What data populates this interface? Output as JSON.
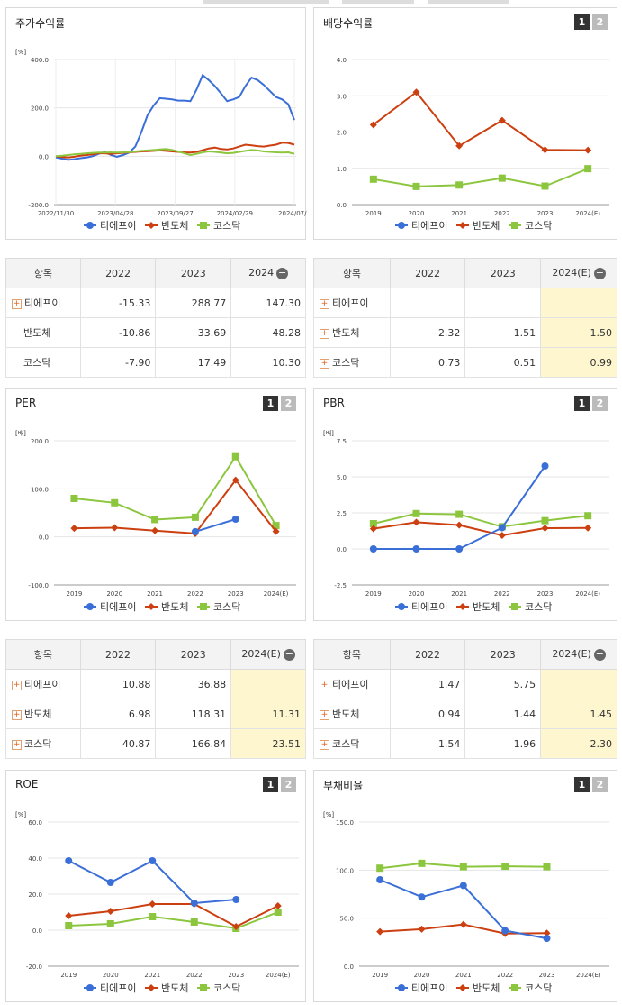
{
  "colors": {
    "tiepi": "#3a6fd8",
    "semi": "#cc3f10",
    "kosdaq": "#8cc63f"
  },
  "legend": [
    "티에프이",
    "반도체",
    "코스닥"
  ],
  "tab_labels": [
    "1",
    "2"
  ],
  "charts": {
    "stock": {
      "title": "주가수익률",
      "unit": "[%]",
      "ylim": [
        -200,
        400
      ],
      "yticks": [
        "400.0",
        "200.0",
        "0.0",
        "-200.0"
      ],
      "xticks": [
        "2022/11/30",
        "2023/04/28",
        "2023/09/27",
        "2024/02/29",
        "2024/07/3"
      ],
      "grid": true
    },
    "dividend": {
      "title": "배당수익률",
      "unit": "",
      "ylim": [
        0,
        4
      ],
      "yticks": [
        "4.0",
        "3.0",
        "2.0",
        "1.0",
        "0.0"
      ],
      "categories": [
        "2019",
        "2020",
        "2021",
        "2022",
        "2023",
        "2024(E)"
      ]
    },
    "per": {
      "title": "PER",
      "unit": "[배]",
      "ylim": [
        -100,
        200
      ],
      "yticks": [
        "200.0",
        "100.0",
        "0.0",
        "-100.0"
      ],
      "categories": [
        "2019",
        "2020",
        "2021",
        "2022",
        "2023",
        "2024(E)"
      ]
    },
    "pbr": {
      "title": "PBR",
      "unit": "[배]",
      "ylim": [
        -2.5,
        7.5
      ],
      "yticks": [
        "7.5",
        "5.0",
        "2.5",
        "0.0",
        "-2.5"
      ],
      "categories": [
        "2019",
        "2020",
        "2021",
        "2022",
        "2023",
        "2024(E)"
      ]
    },
    "roe": {
      "title": "ROE",
      "unit": "[%]",
      "ylim": [
        -20,
        60
      ],
      "yticks": [
        "60.0",
        "40.0",
        "20.0",
        "0.0",
        "-20.0"
      ],
      "categories": [
        "2019",
        "2020",
        "2021",
        "2022",
        "2023",
        "2024(E)"
      ]
    },
    "debt": {
      "title": "부채비율",
      "unit": "[%]",
      "ylim": [
        0,
        150
      ],
      "yticks": [
        "150.0",
        "100.0",
        "50.0",
        "0.0"
      ],
      "categories": [
        "2019",
        "2020",
        "2021",
        "2022",
        "2023",
        "2024(E)"
      ]
    }
  },
  "chart_data": [
    {
      "type": "line",
      "title": "주가수익률",
      "ylabel": "[%]",
      "ylim": [
        -200,
        400
      ],
      "x": [
        "2022/11/30",
        "",
        "",
        "",
        "",
        "",
        "",
        "",
        "",
        "",
        "2023/04/28",
        "",
        "",
        "",
        "",
        "",
        "",
        "",
        "",
        "",
        "2023/09/27",
        "",
        "",
        "",
        "",
        "",
        "",
        "",
        "",
        "",
        "2024/02/29",
        "",
        "",
        "",
        "",
        "",
        "",
        "",
        "",
        "2024/07/3"
      ],
      "series": [
        {
          "name": "티에프이",
          "values": [
            -5,
            -10,
            -15,
            -12,
            -8,
            -5,
            0,
            10,
            18,
            5,
            -2,
            5,
            15,
            40,
            100,
            170,
            210,
            240,
            238,
            235,
            230,
            230,
            228,
            275,
            335,
            315,
            290,
            260,
            228,
            235,
            245,
            290,
            325,
            315,
            295,
            270,
            245,
            235,
            215,
            150
          ]
        },
        {
          "name": "반도체",
          "values": [
            0,
            -3,
            -5,
            -2,
            2,
            5,
            8,
            12,
            12,
            10,
            12,
            14,
            16,
            18,
            20,
            21,
            22,
            24,
            22,
            20,
            18,
            16,
            15,
            18,
            25,
            32,
            36,
            30,
            28,
            32,
            40,
            48,
            45,
            42,
            40,
            44,
            48,
            56,
            55,
            48
          ]
        },
        {
          "name": "코스닥",
          "values": [
            0,
            2,
            5,
            8,
            10,
            12,
            14,
            15,
            15,
            16,
            15,
            16,
            17,
            20,
            22,
            24,
            26,
            28,
            30,
            26,
            20,
            12,
            5,
            10,
            16,
            20,
            18,
            15,
            12,
            14,
            18,
            22,
            26,
            24,
            20,
            18,
            16,
            15,
            16,
            10
          ]
        }
      ]
    },
    {
      "type": "line",
      "title": "배당수익률",
      "ylim": [
        0,
        4
      ],
      "categories": [
        "2019",
        "2020",
        "2021",
        "2022",
        "2023",
        "2024(E)"
      ],
      "series": [
        {
          "name": "티에프이",
          "values": [
            null,
            null,
            null,
            null,
            null,
            null
          ]
        },
        {
          "name": "반도체",
          "values": [
            2.2,
            3.1,
            1.62,
            2.32,
            1.51,
            1.5
          ]
        },
        {
          "name": "코스닥",
          "values": [
            0.7,
            0.5,
            0.54,
            0.73,
            0.51,
            0.99
          ]
        }
      ]
    },
    {
      "type": "line",
      "title": "PER",
      "ylabel": "[배]",
      "ylim": [
        -100,
        200
      ],
      "categories": [
        "2019",
        "2020",
        "2021",
        "2022",
        "2023",
        "2024(E)"
      ],
      "series": [
        {
          "name": "티에프이",
          "values": [
            null,
            null,
            null,
            10.88,
            36.88,
            null
          ]
        },
        {
          "name": "반도체",
          "values": [
            18,
            19,
            13,
            6.98,
            118.31,
            11.31
          ]
        },
        {
          "name": "코스닥",
          "values": [
            80,
            71,
            36,
            40.87,
            166.84,
            23.51
          ]
        }
      ]
    },
    {
      "type": "line",
      "title": "PBR",
      "ylabel": "[배]",
      "ylim": [
        -2.5,
        7.5
      ],
      "categories": [
        "2019",
        "2020",
        "2021",
        "2022",
        "2023",
        "2024(E)"
      ],
      "series": [
        {
          "name": "티에프이",
          "values": [
            0,
            0,
            0,
            1.47,
            5.75,
            null
          ]
        },
        {
          "name": "반도체",
          "values": [
            1.4,
            1.85,
            1.65,
            0.94,
            1.44,
            1.45
          ]
        },
        {
          "name": "코스닥",
          "values": [
            1.75,
            2.45,
            2.4,
            1.54,
            1.96,
            2.3
          ]
        }
      ]
    },
    {
      "type": "line",
      "title": "ROE",
      "ylabel": "[%]",
      "ylim": [
        -20,
        60
      ],
      "categories": [
        "2019",
        "2020",
        "2021",
        "2022",
        "2023",
        "2024(E)"
      ],
      "series": [
        {
          "name": "티에프이",
          "values": [
            38.5,
            26.5,
            38.5,
            15,
            17,
            null
          ]
        },
        {
          "name": "반도체",
          "values": [
            8,
            10.5,
            14.5,
            14.5,
            2,
            13.5
          ]
        },
        {
          "name": "코스닥",
          "values": [
            2.5,
            3.5,
            7.5,
            4.5,
            1,
            10
          ]
        }
      ]
    },
    {
      "type": "line",
      "title": "부채비율",
      "ylabel": "[%]",
      "ylim": [
        0,
        150
      ],
      "categories": [
        "2019",
        "2020",
        "2021",
        "2022",
        "2023",
        "2024(E)"
      ],
      "series": [
        {
          "name": "티에프이",
          "values": [
            90,
            72,
            84,
            37,
            29,
            null
          ]
        },
        {
          "name": "반도체",
          "values": [
            36,
            38.5,
            43.5,
            34,
            34.5,
            null
          ]
        },
        {
          "name": "코스닥",
          "values": [
            102,
            107,
            103.5,
            104,
            103.5,
            null
          ]
        }
      ]
    }
  ],
  "tables": {
    "stock": {
      "headers": [
        "항목",
        "2022",
        "2023",
        "2024"
      ],
      "rows": [
        {
          "label": "티에프이",
          "plus": true,
          "v": [
            "-15.33",
            "288.77",
            "147.30"
          ]
        },
        {
          "label": "반도체",
          "plus": false,
          "v": [
            "-10.86",
            "33.69",
            "48.28"
          ]
        },
        {
          "label": "코스닥",
          "plus": false,
          "v": [
            "-7.90",
            "17.49",
            "10.30"
          ]
        }
      ]
    },
    "dividend": {
      "headers": [
        "항목",
        "2022",
        "2023",
        "2024(E)"
      ],
      "rows": [
        {
          "label": "티에프이",
          "plus": true,
          "v": [
            "",
            "",
            ""
          ]
        },
        {
          "label": "반도체",
          "plus": true,
          "v": [
            "2.32",
            "1.51",
            "1.50"
          ]
        },
        {
          "label": "코스닥",
          "plus": true,
          "v": [
            "0.73",
            "0.51",
            "0.99"
          ]
        }
      ]
    },
    "per": {
      "headers": [
        "항목",
        "2022",
        "2023",
        "2024(E)"
      ],
      "rows": [
        {
          "label": "티에프이",
          "plus": true,
          "v": [
            "10.88",
            "36.88",
            ""
          ]
        },
        {
          "label": "반도체",
          "plus": true,
          "v": [
            "6.98",
            "118.31",
            "11.31"
          ]
        },
        {
          "label": "코스닥",
          "plus": true,
          "v": [
            "40.87",
            "166.84",
            "23.51"
          ]
        }
      ]
    },
    "pbr": {
      "headers": [
        "항목",
        "2022",
        "2023",
        "2024(E)"
      ],
      "rows": [
        {
          "label": "티에프이",
          "plus": true,
          "v": [
            "1.47",
            "5.75",
            ""
          ]
        },
        {
          "label": "반도체",
          "plus": true,
          "v": [
            "0.94",
            "1.44",
            "1.45"
          ]
        },
        {
          "label": "코스닥",
          "plus": true,
          "v": [
            "1.54",
            "1.96",
            "2.30"
          ]
        }
      ]
    }
  }
}
